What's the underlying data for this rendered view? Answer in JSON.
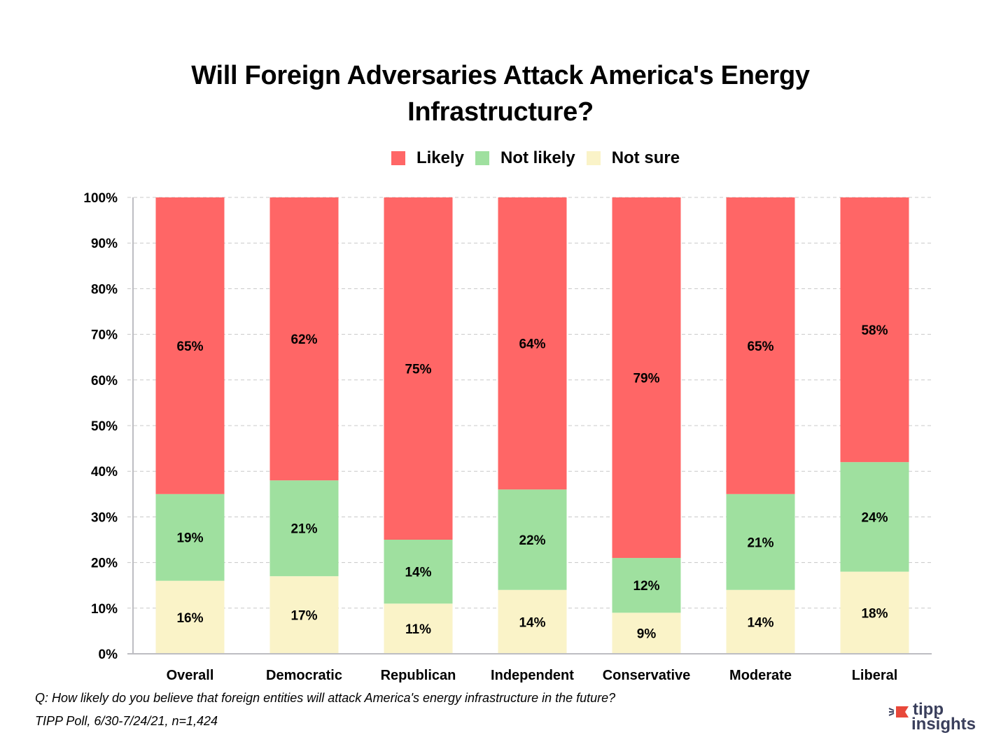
{
  "chart_data": {
    "type": "bar",
    "stacked": true,
    "title": "Will Foreign Adversaries Attack America's Energy Infrastructure?",
    "title_lines": [
      "Will Foreign Adversaries Attack America's Energy",
      "Infrastructure?"
    ],
    "xlabel": "",
    "ylabel": "",
    "ylim": [
      0,
      100
    ],
    "y_ticks": [
      "0%",
      "10%",
      "20%",
      "30%",
      "40%",
      "50%",
      "60%",
      "70%",
      "80%",
      "90%",
      "100%"
    ],
    "grid": true,
    "legend_position": "top-center",
    "categories": [
      "Overall",
      "Democratic",
      "Republican",
      "Independent",
      "Conservative",
      "Moderate",
      "Liberal"
    ],
    "series": [
      {
        "name": "Likely",
        "color": "#ff6666",
        "values": [
          65,
          62,
          75,
          64,
          79,
          65,
          58
        ]
      },
      {
        "name": "Not likely",
        "color": "#9fe09f",
        "values": [
          19,
          21,
          14,
          22,
          12,
          21,
          24
        ]
      },
      {
        "name": "Not sure",
        "color": "#faf3c8",
        "values": [
          16,
          17,
          11,
          14,
          9,
          14,
          18
        ]
      }
    ],
    "stack_order_bottom_to_top": [
      "Not sure",
      "Not likely",
      "Likely"
    ],
    "data_label_suffix": "%"
  },
  "footer": {
    "question": "Q: How likely do you believe that foreign entities will attack America's energy infrastructure in the future?",
    "source": "TIPP Poll, 6/30-7/24/21, n=1,424"
  },
  "logo": {
    "line1": "tipp",
    "line2": "insights",
    "text_color": "#3a3f5c",
    "accent_color": "#e8483a"
  }
}
